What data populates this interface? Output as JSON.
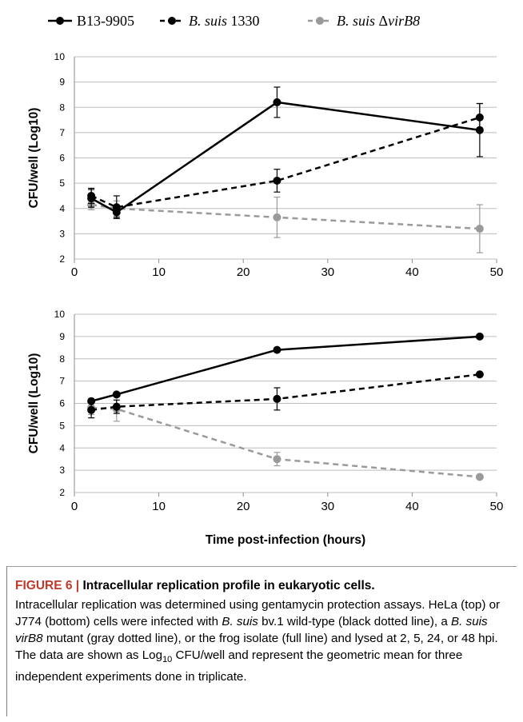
{
  "legend": [
    {
      "label": "B13-9905",
      "italic_part": "",
      "color": "#000000",
      "dash": "solid"
    },
    {
      "label": "B. suis 1330",
      "italic_part": "B. suis",
      "rest": " 1330",
      "color": "#000000",
      "dash": "dashed"
    },
    {
      "label": "B. suis ΔvirB8",
      "italic_part": "B. suis",
      "rest": " Δ",
      "rest_italic": "virB8",
      "color": "#9a9a9a",
      "dash": "dashed"
    }
  ],
  "chart_data": [
    {
      "type": "line",
      "panel": "top",
      "title": "",
      "xlabel": "",
      "ylabel": "CFU/well (Log10)",
      "xlim": [
        0,
        50
      ],
      "ylim": [
        2,
        10
      ],
      "xticks": [
        0,
        10,
        20,
        30,
        40,
        50
      ],
      "yticks": [
        2,
        3,
        4,
        5,
        6,
        7,
        8,
        9,
        10
      ],
      "grid": true,
      "series": [
        {
          "name": "B13-9905",
          "color": "#000000",
          "dash": "solid",
          "x": [
            2,
            5,
            24,
            48
          ],
          "y": [
            4.4,
            3.85,
            8.2,
            7.1
          ],
          "err": [
            0.35,
            0.2,
            0.6,
            1.05
          ]
        },
        {
          "name": "B. suis 1330",
          "color": "#000000",
          "dash": "dashed",
          "x": [
            2,
            5,
            24,
            48
          ],
          "y": [
            4.5,
            4.05,
            5.1,
            7.6
          ],
          "err": [
            0.3,
            0.45,
            0.45,
            0.55
          ]
        },
        {
          "name": "B. suis ΔvirB8",
          "color": "#9a9a9a",
          "dash": "dashed",
          "x": [
            2,
            5,
            24,
            48
          ],
          "y": [
            4.15,
            4.0,
            3.65,
            3.2
          ],
          "err": [
            0.2,
            0.3,
            0.8,
            0.95
          ]
        }
      ]
    },
    {
      "type": "line",
      "panel": "bottom",
      "title": "",
      "xlabel": "Time post-infection (hours)",
      "ylabel": "CFU/well (Log10)",
      "xlim": [
        0,
        50
      ],
      "ylim": [
        2,
        10
      ],
      "xticks": [
        0,
        10,
        20,
        30,
        40,
        50
      ],
      "yticks": [
        2,
        3,
        4,
        5,
        6,
        7,
        8,
        9,
        10
      ],
      "grid": true,
      "series": [
        {
          "name": "B13-9905",
          "color": "#000000",
          "dash": "solid",
          "x": [
            2,
            5,
            24,
            48
          ],
          "y": [
            6.1,
            6.4,
            8.4,
            9.0
          ],
          "err": [
            0,
            0,
            0,
            0
          ]
        },
        {
          "name": "B. suis 1330",
          "color": "#000000",
          "dash": "dashed",
          "x": [
            2,
            5,
            24,
            48
          ],
          "y": [
            5.7,
            5.85,
            6.2,
            7.3
          ],
          "err": [
            0.35,
            0.3,
            0.5,
            0
          ]
        },
        {
          "name": "B. suis ΔvirB8",
          "color": "#9a9a9a",
          "dash": "dashed",
          "x": [
            2,
            5,
            24,
            48
          ],
          "y": [
            5.8,
            5.75,
            3.5,
            2.7
          ],
          "err": [
            0.3,
            0.55,
            0.3,
            0
          ]
        }
      ]
    }
  ],
  "caption": {
    "figure_label": "FIGURE 6 |",
    "title": " Intracellular replication profile in eukaryotic cells.",
    "body_parts": [
      {
        "t": "Intracellular replication was determined using gentamycin protection assays. HeLa (top) or J774 (bottom) cells were infected with ",
        "i": false
      },
      {
        "t": "B. suis",
        "i": true
      },
      {
        "t": " bv.1 wild-type (black dotted line), a ",
        "i": false
      },
      {
        "t": "B. suis virB8",
        "i": true
      },
      {
        "t": " mutant (gray dotted line), or the frog isolate (full line) and lysed at 2, 5, 24, or 48 hpi. The data are shown as Log",
        "i": false
      },
      {
        "t": "10",
        "i": false,
        "sub": true
      },
      {
        "t": " CFU/well and represent the geometric mean for three independent experiments done in triplicate.",
        "i": false
      }
    ]
  }
}
